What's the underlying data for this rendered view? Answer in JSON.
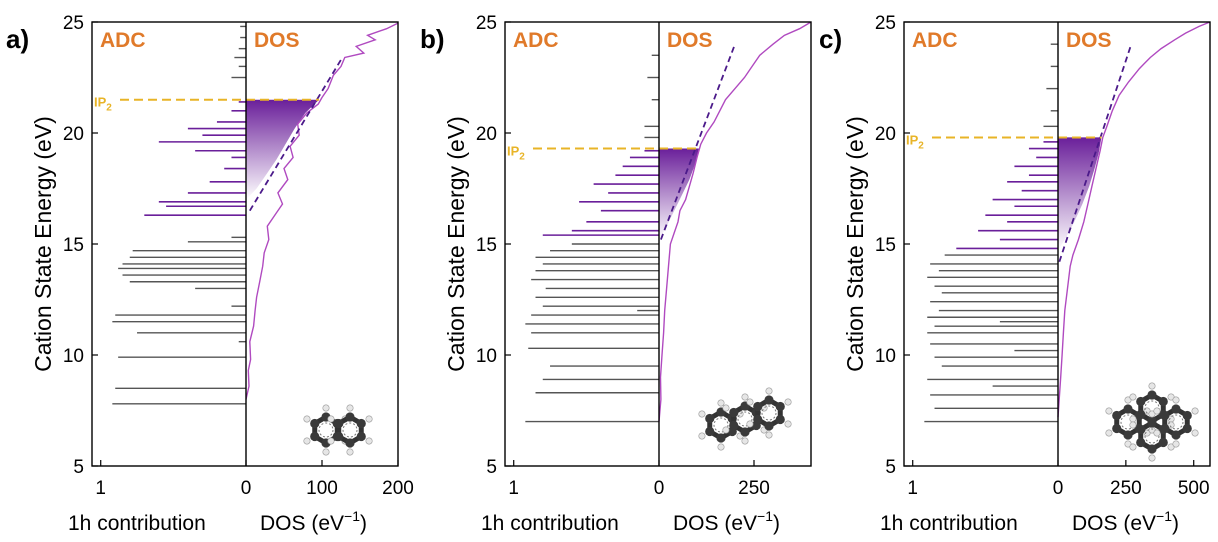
{
  "chart_data": [
    {
      "panel_label": "a)",
      "type": "line",
      "ylabel": "Cation State Energy (eV)",
      "ylim": [
        5,
        25
      ],
      "yticks": [
        "5",
        "10",
        "15",
        "20",
        "25"
      ],
      "adc_header": "ADC",
      "dos_header": "DOS",
      "xlabel_left": "1h contribution",
      "xlabel_right": "DOS (eV",
      "xlabel_right_sup": "−1",
      "xlabel_right_close": ")",
      "adc_xticks": [
        "1",
        "0"
      ],
      "dos_xmax": 200,
      "dos_xticks": [
        {
          "v": 0,
          "label": "0"
        },
        {
          "v": 100,
          "label": "100"
        },
        {
          "v": 200,
          "label": "200"
        }
      ],
      "ip_label": "IP",
      "ip_sub": "2",
      "ip_energy": 21.5,
      "molecule": "naphthalene",
      "adc_gray": [
        [
          7.8,
          0.92
        ],
        [
          8.5,
          0.9
        ],
        [
          9.9,
          0.88
        ],
        [
          11.0,
          0.75
        ],
        [
          11.5,
          0.92
        ],
        [
          11.8,
          0.9
        ],
        [
          12.2,
          0.1
        ],
        [
          13.0,
          0.35
        ],
        [
          13.3,
          0.8
        ],
        [
          13.6,
          0.85
        ],
        [
          13.9,
          0.88
        ],
        [
          14.1,
          0.85
        ],
        [
          14.4,
          0.8
        ],
        [
          14.7,
          0.78
        ],
        [
          15.1,
          0.4
        ],
        [
          15.3,
          0.1
        ],
        [
          10.6,
          0.05
        ],
        [
          22.5,
          0.1
        ],
        [
          23.0,
          0.05
        ],
        [
          23.4,
          0.08
        ],
        [
          23.8,
          0.05
        ],
        [
          24.3,
          0.04
        ],
        [
          24.8,
          0.04
        ]
      ],
      "adc_purple": [
        [
          16.3,
          0.7
        ],
        [
          16.7,
          0.55
        ],
        [
          16.9,
          0.6
        ],
        [
          17.3,
          0.4
        ],
        [
          17.8,
          0.25
        ],
        [
          18.4,
          0.15
        ],
        [
          18.9,
          0.1
        ],
        [
          19.2,
          0.35
        ],
        [
          19.6,
          0.6
        ],
        [
          19.9,
          0.3
        ],
        [
          20.2,
          0.4
        ],
        [
          20.5,
          0.2
        ],
        [
          21.0,
          0.1
        ],
        [
          21.4,
          0.05
        ]
      ],
      "dos_points": [
        [
          0,
          8.0
        ],
        [
          4,
          8.6
        ],
        [
          3,
          9.3
        ],
        [
          6,
          9.8
        ],
        [
          5,
          10.6
        ],
        [
          10,
          11.3
        ],
        [
          12,
          12.0
        ],
        [
          14,
          12.6
        ],
        [
          18,
          13.3
        ],
        [
          22,
          14.0
        ],
        [
          24,
          14.6
        ],
        [
          30,
          15.2
        ],
        [
          28,
          15.8
        ],
        [
          40,
          16.4
        ],
        [
          48,
          16.8
        ],
        [
          42,
          17.3
        ],
        [
          55,
          17.9
        ],
        [
          50,
          18.4
        ],
        [
          62,
          18.9
        ],
        [
          58,
          19.4
        ],
        [
          70,
          19.9
        ],
        [
          68,
          20.4
        ],
        [
          80,
          20.9
        ],
        [
          95,
          21.3
        ],
        [
          100,
          21.6
        ],
        [
          108,
          22.0
        ],
        [
          115,
          22.6
        ],
        [
          125,
          23.0
        ],
        [
          130,
          23.4
        ],
        [
          155,
          23.6
        ],
        [
          145,
          23.9
        ],
        [
          170,
          24.2
        ],
        [
          160,
          24.4
        ],
        [
          185,
          24.7
        ],
        [
          200,
          24.95
        ]
      ],
      "dos_fit": [
        [
          5,
          16.5
        ],
        [
          125,
          23.3
        ]
      ],
      "fill_points": [
        [
          0,
          17.0
        ],
        [
          14,
          17.5
        ],
        [
          28,
          18.2
        ],
        [
          40,
          18.8
        ],
        [
          52,
          19.5
        ],
        [
          64,
          20.2
        ],
        [
          78,
          20.9
        ],
        [
          96,
          21.5
        ],
        [
          0,
          21.5
        ]
      ]
    },
    {
      "panel_label": "b)",
      "type": "line",
      "ylabel": "Cation State Energy (eV)",
      "ylim": [
        5,
        25
      ],
      "yticks": [
        "5",
        "10",
        "15",
        "20",
        "25"
      ],
      "adc_header": "ADC",
      "dos_header": "DOS",
      "xlabel_left": "1h contribution",
      "xlabel_right": "DOS (eV",
      "xlabel_right_sup": "−1",
      "xlabel_right_close": ")",
      "adc_xticks": [
        "1",
        "0"
      ],
      "dos_xmax": 400,
      "dos_xticks": [
        {
          "v": 0,
          "label": "0"
        },
        {
          "v": 250,
          "label": "250"
        }
      ],
      "ip_label": "IP",
      "ip_sub": "2",
      "ip_energy": 19.3,
      "molecule": "anthracene",
      "adc_gray": [
        [
          7.0,
          0.92
        ],
        [
          8.3,
          0.85
        ],
        [
          8.9,
          0.8
        ],
        [
          9.5,
          0.75
        ],
        [
          10.3,
          0.9
        ],
        [
          11.0,
          0.88
        ],
        [
          11.4,
          0.92
        ],
        [
          11.8,
          0.88
        ],
        [
          12.2,
          0.8
        ],
        [
          12.6,
          0.85
        ],
        [
          13.0,
          0.78
        ],
        [
          13.4,
          0.88
        ],
        [
          13.8,
          0.85
        ],
        [
          14.1,
          0.8
        ],
        [
          14.4,
          0.85
        ],
        [
          14.7,
          0.75
        ],
        [
          15.0,
          0.6
        ],
        [
          12.0,
          0.15
        ],
        [
          19.8,
          0.1
        ],
        [
          20.3,
          0.1
        ],
        [
          21.5,
          0.05
        ],
        [
          22.5,
          0.08
        ],
        [
          23.5,
          0.05
        ]
      ],
      "adc_purple": [
        [
          15.4,
          0.8
        ],
        [
          15.6,
          0.6
        ],
        [
          16.0,
          0.5
        ],
        [
          16.5,
          0.4
        ],
        [
          16.9,
          0.55
        ],
        [
          17.3,
          0.35
        ],
        [
          17.7,
          0.45
        ],
        [
          18.1,
          0.3
        ],
        [
          18.5,
          0.25
        ],
        [
          18.9,
          0.2
        ],
        [
          19.2,
          0.1
        ]
      ],
      "dos_points": [
        [
          0,
          7.0
        ],
        [
          5,
          8.0
        ],
        [
          4,
          9.0
        ],
        [
          8,
          10.0
        ],
        [
          12,
          11.0
        ],
        [
          15,
          12.0
        ],
        [
          20,
          13.0
        ],
        [
          25,
          14.0
        ],
        [
          30,
          15.0
        ],
        [
          40,
          15.5
        ],
        [
          50,
          16.0
        ],
        [
          55,
          16.5
        ],
        [
          70,
          17.0
        ],
        [
          80,
          17.6
        ],
        [
          90,
          18.2
        ],
        [
          100,
          18.9
        ],
        [
          110,
          19.5
        ],
        [
          125,
          20.0
        ],
        [
          145,
          20.5
        ],
        [
          160,
          21.0
        ],
        [
          175,
          21.5
        ],
        [
          200,
          22.0
        ],
        [
          225,
          22.5
        ],
        [
          245,
          23.0
        ],
        [
          265,
          23.5
        ],
        [
          300,
          24.0
        ],
        [
          330,
          24.4
        ],
        [
          370,
          24.7
        ],
        [
          400,
          25.0
        ]
      ],
      "dos_fit": [
        [
          5,
          15.2
        ],
        [
          200,
          24.0
        ]
      ],
      "fill_points": [
        [
          0,
          15.2
        ],
        [
          20,
          15.8
        ],
        [
          40,
          16.5
        ],
        [
          60,
          17.2
        ],
        [
          80,
          17.9
        ],
        [
          95,
          18.6
        ],
        [
          105,
          19.3
        ],
        [
          0,
          19.3
        ]
      ]
    },
    {
      "panel_label": "c)",
      "type": "line",
      "ylabel": "Cation State Energy (eV)",
      "ylim": [
        5,
        25
      ],
      "yticks": [
        "5",
        "10",
        "15",
        "20",
        "25"
      ],
      "adc_header": "ADC",
      "dos_header": "DOS",
      "xlabel_left": "1h contribution",
      "xlabel_right": "DOS (eV",
      "xlabel_right_sup": "−1",
      "xlabel_right_close": ")",
      "adc_xticks": [
        "1",
        "0"
      ],
      "dos_xmax": 560,
      "dos_xticks": [
        {
          "v": 0,
          "label": "0"
        },
        {
          "v": 250,
          "label": "250"
        },
        {
          "v": 500,
          "label": "500"
        }
      ],
      "ip_label": "IP",
      "ip_sub": "2",
      "ip_energy": 19.8,
      "molecule": "pyrene",
      "adc_gray": [
        [
          7.0,
          0.92
        ],
        [
          7.6,
          0.85
        ],
        [
          8.2,
          0.88
        ],
        [
          8.9,
          0.9
        ],
        [
          9.5,
          0.8
        ],
        [
          9.9,
          0.85
        ],
        [
          10.5,
          0.88
        ],
        [
          11.0,
          0.9
        ],
        [
          11.3,
          0.85
        ],
        [
          11.7,
          0.9
        ],
        [
          12.0,
          0.82
        ],
        [
          12.4,
          0.88
        ],
        [
          12.8,
          0.8
        ],
        [
          13.1,
          0.85
        ],
        [
          13.5,
          0.9
        ],
        [
          13.8,
          0.82
        ],
        [
          14.1,
          0.88
        ],
        [
          14.5,
          0.78
        ],
        [
          11.5,
          0.4
        ],
        [
          10.2,
          0.3
        ],
        [
          8.6,
          0.45
        ],
        [
          20.3,
          0.1
        ],
        [
          21.0,
          0.05
        ],
        [
          22.0,
          0.08
        ],
        [
          23.0,
          0.05
        ],
        [
          24.0,
          0.05
        ]
      ],
      "adc_purple": [
        [
          14.8,
          0.7
        ],
        [
          15.2,
          0.4
        ],
        [
          15.6,
          0.55
        ],
        [
          16.0,
          0.35
        ],
        [
          16.3,
          0.5
        ],
        [
          16.7,
          0.3
        ],
        [
          17.0,
          0.45
        ],
        [
          17.4,
          0.25
        ],
        [
          17.8,
          0.35
        ],
        [
          18.1,
          0.2
        ],
        [
          18.5,
          0.3
        ],
        [
          18.9,
          0.15
        ],
        [
          19.3,
          0.2
        ],
        [
          19.6,
          0.1
        ]
      ],
      "dos_points": [
        [
          0,
          7.2
        ],
        [
          10,
          9.0
        ],
        [
          15,
          10.0
        ],
        [
          20,
          11.0
        ],
        [
          25,
          12.0
        ],
        [
          35,
          13.0
        ],
        [
          45,
          14.0
        ],
        [
          55,
          14.5
        ],
        [
          75,
          15.2
        ],
        [
          95,
          16.0
        ],
        [
          110,
          16.8
        ],
        [
          125,
          17.6
        ],
        [
          140,
          18.4
        ],
        [
          155,
          19.2
        ],
        [
          165,
          19.8
        ],
        [
          180,
          20.3
        ],
        [
          200,
          21.0
        ],
        [
          225,
          21.7
        ],
        [
          260,
          22.3
        ],
        [
          300,
          22.9
        ],
        [
          340,
          23.4
        ],
        [
          380,
          23.8
        ],
        [
          430,
          24.2
        ],
        [
          470,
          24.5
        ],
        [
          520,
          24.8
        ],
        [
          560,
          25.0
        ]
      ],
      "dos_fit": [
        [
          5,
          14.2
        ],
        [
          270,
          24.0
        ]
      ],
      "fill_points": [
        [
          0,
          14.7
        ],
        [
          30,
          15.3
        ],
        [
          60,
          16.0
        ],
        [
          90,
          16.8
        ],
        [
          115,
          17.6
        ],
        [
          135,
          18.4
        ],
        [
          150,
          19.1
        ],
        [
          160,
          19.8
        ],
        [
          0,
          19.8
        ]
      ]
    }
  ]
}
